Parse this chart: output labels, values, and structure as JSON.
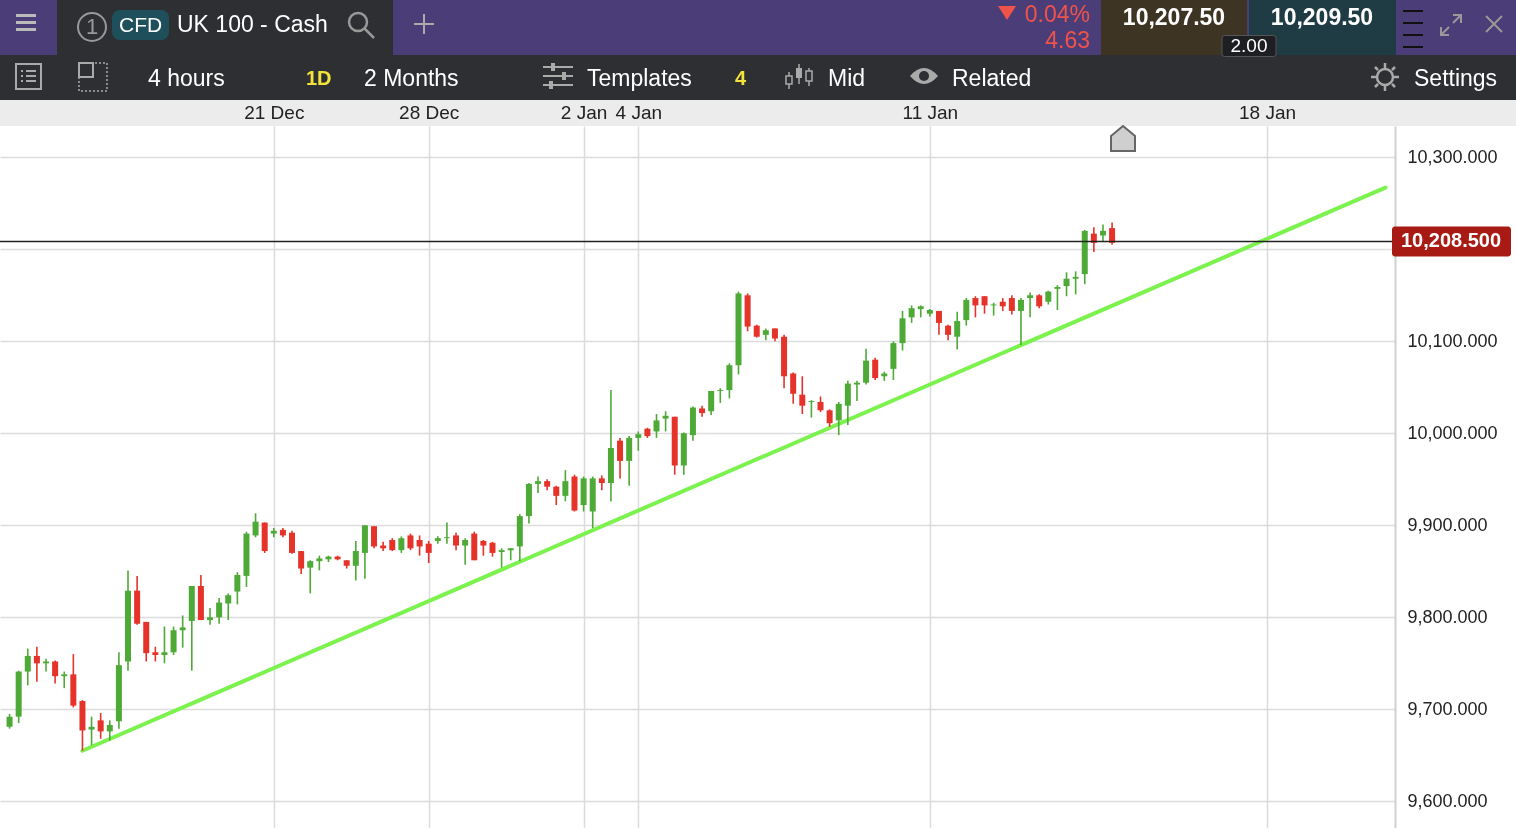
{
  "chart_data": {
    "type": "candlestick",
    "categories": [
      null,
      null,
      null,
      null,
      null,
      null,
      null,
      null,
      null,
      null,
      null,
      null,
      null,
      null,
      null,
      null,
      null,
      null,
      null,
      null,
      null,
      null,
      null,
      null,
      null,
      null,
      null,
      null,
      null,
      "21 Dec",
      null,
      null,
      null,
      null,
      null,
      null,
      null,
      null,
      null,
      null,
      null,
      null,
      null,
      null,
      null,
      null,
      "28 Dec",
      null,
      null,
      null,
      null,
      null,
      null,
      null,
      null,
      null,
      null,
      null,
      null,
      null,
      null,
      null,
      null,
      "2 Jan",
      null,
      null,
      null,
      null,
      null,
      "4 Jan",
      null,
      null,
      null,
      null,
      null,
      null,
      null,
      null,
      null,
      null,
      null,
      null,
      null,
      null,
      null,
      null,
      null,
      null,
      null,
      null,
      null,
      null,
      null,
      null,
      null,
      null,
      null,
      null,
      null,
      null,
      null,
      "11 Jan",
      null,
      null,
      null,
      null,
      null,
      null,
      null,
      null,
      null,
      null,
      null,
      null,
      null,
      null,
      null,
      null,
      null,
      null,
      null,
      null,
      null,
      null,
      null,
      null,
      null,
      null,
      null,
      null,
      null,
      null,
      null,
      null,
      null,
      null,
      null,
      null,
      "18 Jan",
      null,
      null,
      null,
      null,
      null,
      null,
      null,
      null,
      null,
      null,
      null,
      null,
      null
    ],
    "ohlc": [
      [
        9681,
        9695,
        9679,
        9692
      ],
      [
        9692,
        9742,
        9685,
        9741
      ],
      [
        9741,
        9766,
        9726,
        9758
      ],
      [
        9758,
        9768,
        9730,
        9750
      ],
      [
        9750,
        9755,
        9741,
        9752
      ],
      [
        9752,
        9753,
        9728,
        9736
      ],
      [
        9736,
        9741,
        9723,
        9738
      ],
      [
        9738,
        9760,
        9702,
        9704
      ],
      [
        9709,
        9710,
        9655,
        9677
      ],
      [
        9678,
        9692,
        9661,
        9681
      ],
      [
        9688,
        9696,
        9668,
        9676
      ],
      [
        9676,
        9688,
        9666,
        9683
      ],
      [
        9687,
        9762,
        9679,
        9748
      ],
      [
        9752,
        9851,
        9742,
        9829
      ],
      [
        9829,
        9845,
        9792,
        9793
      ],
      [
        9795,
        9795,
        9752,
        9761
      ],
      [
        9762,
        9768,
        9752,
        9759
      ],
      [
        9759,
        9790,
        9750,
        9762
      ],
      [
        9762,
        9790,
        9759,
        9786
      ],
      [
        9786,
        9802,
        9767,
        9789
      ],
      [
        9796,
        9834,
        9742,
        9834
      ],
      [
        9834,
        9846,
        9797,
        9797
      ],
      [
        9797,
        9810,
        9792,
        9800
      ],
      [
        9800,
        9821,
        9793,
        9816
      ],
      [
        9815,
        9826,
        9797,
        9824
      ],
      [
        9828,
        9849,
        9814,
        9846
      ],
      [
        9845,
        9893,
        9833,
        9891
      ],
      [
        9889,
        9913,
        9887,
        9904
      ],
      [
        9903,
        9903,
        9870,
        9872
      ],
      [
        9891,
        9897,
        9887,
        9894
      ],
      [
        9895,
        9897,
        9887,
        9889
      ],
      [
        9892,
        9894,
        9869,
        9870
      ],
      [
        9872,
        9872,
        9847,
        9853
      ],
      [
        9854,
        9862,
        9826,
        9861
      ],
      [
        9861,
        9867,
        9851,
        9864
      ],
      [
        9863,
        9867,
        9860,
        9866
      ],
      [
        9866,
        9867,
        9862,
        9863
      ],
      [
        9862,
        9862,
        9853,
        9856
      ],
      [
        9856,
        9883,
        9840,
        9872
      ],
      [
        9870,
        9900,
        9842,
        9900
      ],
      [
        9899,
        9899,
        9875,
        9877
      ],
      [
        9878,
        9882,
        9872,
        9875
      ],
      [
        9884,
        9886,
        9872,
        9873
      ],
      [
        9873,
        9888,
        9870,
        9886
      ],
      [
        9889,
        9891,
        9873,
        9875
      ],
      [
        9884,
        9889,
        9867,
        9877
      ],
      [
        9880,
        9883,
        9859,
        9870
      ],
      [
        9883,
        9888,
        9880,
        9886
      ],
      [
        9886,
        9903,
        9880,
        9887
      ],
      [
        9889,
        9892,
        9873,
        9878
      ],
      [
        9878,
        9886,
        9857,
        9884
      ],
      [
        9891,
        9893,
        9862,
        9862
      ],
      [
        9883,
        9884,
        9867,
        9878
      ],
      [
        9881,
        9882,
        9866,
        9870
      ],
      [
        9871,
        9875,
        9854,
        9873
      ],
      [
        9873,
        9875,
        9862,
        9875
      ],
      [
        9877,
        9912,
        9861,
        9910
      ],
      [
        9910,
        9946,
        9902,
        9945
      ],
      [
        9945,
        9953,
        9935,
        9948
      ],
      [
        9948,
        9950,
        9938,
        9942
      ],
      [
        9942,
        9943,
        9922,
        9932
      ],
      [
        9932,
        9960,
        9926,
        9948
      ],
      [
        9953,
        9955,
        9915,
        9916
      ],
      [
        9922,
        9953,
        9915,
        9951
      ],
      [
        9915,
        9953,
        9897,
        9951
      ],
      [
        9951,
        9954,
        9938,
        9946
      ],
      [
        9946,
        10047,
        9926,
        9984
      ],
      [
        9992,
        9995,
        9951,
        9970
      ],
      [
        9970,
        9997,
        9943,
        9995
      ],
      [
        9995,
        10002,
        9981,
        9999
      ],
      [
        10005,
        10006,
        9995,
        9997
      ],
      [
        10002,
        10021,
        9995,
        10014
      ],
      [
        10016,
        10024,
        10002,
        10019
      ],
      [
        10018,
        10018,
        9955,
        9965
      ],
      [
        9965,
        10001,
        9955,
        10000
      ],
      [
        9998,
        10029,
        9992,
        10028
      ],
      [
        10027,
        10030,
        10018,
        10022
      ],
      [
        10024,
        10046,
        10020,
        10046
      ],
      [
        10046,
        10049,
        10033,
        10047
      ],
      [
        10047,
        10076,
        10038,
        10074
      ],
      [
        10074,
        10154,
        10064,
        10152
      ],
      [
        10150,
        10152,
        10111,
        10116
      ],
      [
        10117,
        10118,
        10104,
        10105
      ],
      [
        10107,
        10114,
        10101,
        10112
      ],
      [
        10114,
        10114,
        10100,
        10103
      ],
      [
        10105,
        10107,
        10049,
        10062
      ],
      [
        10065,
        10066,
        10032,
        10043
      ],
      [
        10042,
        10062,
        10021,
        10030
      ],
      [
        10034,
        10036,
        10017,
        10035
      ],
      [
        10034,
        10040,
        10023,
        10025
      ],
      [
        10025,
        10026,
        10007,
        10011
      ],
      [
        10014,
        10034,
        9998,
        10032
      ],
      [
        10030,
        10057,
        10009,
        10054
      ],
      [
        10053,
        10057,
        10035,
        10055
      ],
      [
        10055,
        10092,
        10053,
        10079
      ],
      [
        10080,
        10082,
        10058,
        10060
      ],
      [
        10062,
        10067,
        10057,
        10065
      ],
      [
        10070,
        10100,
        10058,
        10098
      ],
      [
        10098,
        10133,
        10090,
        10125
      ],
      [
        10126,
        10139,
        10120,
        10136
      ],
      [
        10135,
        10139,
        10126,
        10138
      ],
      [
        10130,
        10135,
        10127,
        10134
      ],
      [
        10133,
        10133,
        10107,
        10120
      ],
      [
        10117,
        10118,
        10101,
        10107
      ],
      [
        10105,
        10132,
        10091,
        10122
      ],
      [
        10123,
        10147,
        10117,
        10145
      ],
      [
        10147,
        10149,
        10126,
        10139
      ],
      [
        10149,
        10149,
        10130,
        10139
      ],
      [
        10139,
        10142,
        10128,
        10140
      ],
      [
        10143,
        10147,
        10133,
        10138
      ],
      [
        10147,
        10150,
        10129,
        10133
      ],
      [
        10133,
        10147,
        10096,
        10145
      ],
      [
        10147,
        10153,
        10126,
        10150
      ],
      [
        10150,
        10151,
        10136,
        10138
      ],
      [
        10143,
        10155,
        10140,
        10154
      ],
      [
        10157,
        10161,
        10134,
        10159
      ],
      [
        10160,
        10175,
        10149,
        10168
      ],
      [
        10168,
        10176,
        10151,
        10170
      ],
      [
        10173,
        10221,
        10162,
        10220
      ],
      [
        10217,
        10224,
        10197,
        10207
      ],
      [
        10215,
        10227,
        10209,
        10220
      ],
      [
        10223,
        10229,
        10205,
        10207
      ],
      null,
      null,
      null,
      null,
      null,
      null,
      null,
      null,
      null,
      null,
      null,
      null,
      null,
      null,
      null,
      null,
      null,
      null,
      null,
      null,
      null,
      null,
      null,
      null,
      null,
      null,
      null,
      null,
      null,
      null
    ],
    "colors": [
      "#4eaa36",
      "#4eaa36",
      "#4eaa36",
      "#e5332a",
      "#4eaa36",
      "#e5332a",
      "#4eaa36",
      "#e5332a",
      "#e5332a",
      "#4eaa36",
      "#e5332a",
      "#4eaa36",
      "#4eaa36",
      "#4eaa36",
      "#e5332a",
      "#e5332a",
      "#e5332a",
      "#4eaa36",
      "#4eaa36",
      "#4eaa36",
      "#4eaa36",
      "#e5332a",
      "#4eaa36",
      "#4eaa36",
      "#4eaa36",
      "#4eaa36",
      "#4eaa36",
      "#4eaa36",
      "#e5332a",
      "#4eaa36",
      "#e5332a",
      "#e5332a",
      "#e5332a",
      "#4eaa36",
      "#4eaa36",
      "#4eaa36",
      "#e5332a",
      "#e5332a",
      "#4eaa36",
      "#4eaa36",
      "#e5332a",
      "#e5332a",
      "#e5332a",
      "#4eaa36",
      "#e5332a",
      "#e5332a",
      "#e5332a",
      "#4eaa36",
      "#4eaa36",
      "#e5332a",
      "#4eaa36",
      "#e5332a",
      "#e5332a",
      "#e5332a",
      "#4eaa36",
      "#4eaa36",
      "#4eaa36",
      "#4eaa36",
      "#4eaa36",
      "#e5332a",
      "#e5332a",
      "#4eaa36",
      "#e5332a",
      "#4eaa36",
      "#4eaa36",
      "#e5332a",
      "#4eaa36",
      "#e5332a",
      "#4eaa36",
      "#4eaa36",
      "#e5332a",
      "#4eaa36",
      "#4eaa36",
      "#e5332a",
      "#4eaa36",
      "#4eaa36",
      "#e5332a",
      "#4eaa36",
      "#4eaa36",
      "#4eaa36",
      "#4eaa36",
      "#e5332a",
      "#e5332a",
      "#4eaa36",
      "#e5332a",
      "#e5332a",
      "#e5332a",
      "#e5332a",
      "#4eaa36",
      "#e5332a",
      "#e5332a",
      "#4eaa36",
      "#4eaa36",
      "#4eaa36",
      "#4eaa36",
      "#e5332a",
      "#4eaa36",
      "#4eaa36",
      "#4eaa36",
      "#4eaa36",
      "#4eaa36",
      "#4eaa36",
      "#e5332a",
      "#e5332a",
      "#4eaa36",
      "#4eaa36",
      "#e5332a",
      "#e5332a",
      "#4eaa36",
      "#e5332a",
      "#e5332a",
      "#4eaa36",
      "#4eaa36",
      "#e5332a",
      "#4eaa36",
      "#4eaa36",
      "#4eaa36",
      "#4eaa36",
      "#4eaa36",
      "#e5332a",
      "#4eaa36",
      "#e5332a",
      null,
      null,
      null,
      null,
      null,
      null,
      null,
      null,
      null,
      null,
      null,
      null,
      null,
      null,
      null,
      null,
      null,
      null,
      null,
      null,
      null,
      null,
      null,
      null,
      null,
      null,
      null,
      null,
      null,
      null
    ],
    "series": [
      {
        "type": "line",
        "values": [
          null,
          null,
          null,
          null,
          null,
          null,
          null,
          null,
          9655,
          null,
          null,
          null,
          null,
          null,
          null,
          null,
          null,
          null,
          null,
          null,
          null,
          null,
          null,
          null,
          null,
          null,
          null,
          null,
          null,
          null,
          null,
          null,
          null,
          null,
          null,
          null,
          null,
          null,
          null,
          null,
          null,
          null,
          null,
          null,
          null,
          null,
          null,
          null,
          null,
          null,
          null,
          null,
          null,
          null,
          null,
          null,
          null,
          null,
          null,
          null,
          null,
          null,
          null,
          null,
          null,
          null,
          null,
          null,
          null,
          null,
          null,
          null,
          null,
          null,
          null,
          null,
          null,
          null,
          null,
          null,
          null,
          null,
          null,
          null,
          null,
          null,
          null,
          null,
          null,
          null,
          null,
          null,
          null,
          null,
          null,
          null,
          null,
          null,
          null,
          null,
          null,
          null,
          null,
          null,
          null,
          null,
          null,
          null,
          null,
          null,
          null,
          null,
          null,
          null,
          null,
          null,
          null,
          null,
          null,
          null,
          null,
          null,
          null,
          null,
          null,
          null,
          null,
          null,
          null,
          null,
          null,
          null,
          null,
          null,
          null,
          null,
          null,
          null,
          null,
          null,
          null,
          null,
          null,
          null,
          null,
          null,
          null,
          null,
          null,
          null,
          null,
          10267
        ],
        "color": "#7cf24f"
      }
    ],
    "ylim": [
      9571,
      10334
    ],
    "yticks": [
      {
        "value": 9600,
        "label": "9,600.000"
      },
      {
        "value": 9700,
        "label": "9,700.000"
      },
      {
        "value": 9800,
        "label": "9,800.000"
      },
      {
        "value": 9900,
        "label": "9,900.000"
      },
      {
        "value": 10000,
        "label": "10,000.000"
      },
      {
        "value": 10100,
        "label": "10,100.000"
      },
      {
        "value": 10200,
        "label": null
      },
      {
        "value": 10300,
        "label": "10,300.000"
      }
    ],
    "grid": true,
    "ref_lines": [
      {
        "axis": "y",
        "value": 10208.5,
        "label": "10,208.500",
        "color": "#222222"
      }
    ],
    "annotations": [
      "1",
      "CFD",
      "UK 100 - Cash",
      "0.04%",
      "4.63",
      "10,207.50",
      "10,209.50",
      "2.00",
      "4 hours",
      "1D",
      "2 Months",
      "Templates",
      "4",
      "Mid",
      "Related",
      "Settings"
    ]
  }
}
